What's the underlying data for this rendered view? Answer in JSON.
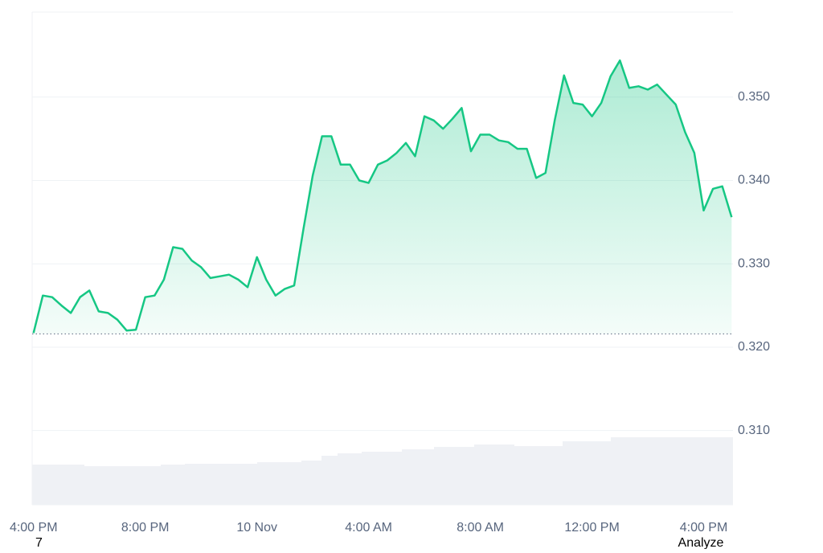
{
  "chart_data": {
    "type": "line",
    "x": [
      0,
      20,
      40,
      60,
      80,
      100,
      120,
      140,
      160,
      180,
      200,
      220,
      240,
      260,
      280,
      300,
      320,
      340,
      360,
      380,
      400,
      420,
      440,
      460,
      480,
      500,
      520,
      540,
      560,
      580,
      600,
      620,
      640,
      660,
      680,
      700,
      720,
      740,
      760,
      780,
      800,
      820,
      840,
      860,
      880,
      900,
      920,
      940,
      960,
      980,
      1000,
      1020,
      1040,
      1060,
      1080,
      1100,
      1120,
      1140,
      1160,
      1180,
      1200,
      1220,
      1240,
      1260,
      1280,
      1300,
      1320,
      1340,
      1360,
      1380,
      1400,
      1420,
      1440,
      1460,
      1480,
      1500
    ],
    "values": [
      0.3217,
      0.3262,
      0.326,
      0.325,
      0.3241,
      0.326,
      0.3268,
      0.3243,
      0.3241,
      0.3233,
      0.322,
      0.3221,
      0.326,
      0.3262,
      0.3281,
      0.332,
      0.3318,
      0.3304,
      0.3296,
      0.3283,
      0.3285,
      0.3287,
      0.3281,
      0.3272,
      0.3308,
      0.3281,
      0.3262,
      0.327,
      0.3274,
      0.3342,
      0.3406,
      0.3453,
      0.3453,
      0.3419,
      0.3419,
      0.34,
      0.3397,
      0.3419,
      0.3424,
      0.3433,
      0.3445,
      0.3429,
      0.3477,
      0.3472,
      0.3462,
      0.3474,
      0.3487,
      0.3435,
      0.3455,
      0.3455,
      0.3448,
      0.3446,
      0.3438,
      0.3438,
      0.3403,
      0.3409,
      0.3472,
      0.3526,
      0.3493,
      0.3491,
      0.3477,
      0.3493,
      0.3525,
      0.3544,
      0.3511,
      0.3513,
      0.3509,
      0.3515,
      0.3503,
      0.3491,
      0.3458,
      0.3433,
      0.3364,
      0.339,
      0.3393,
      0.3356
    ],
    "baseline": 0.3216,
    "up_color": "#16c784",
    "down_color": "#ea3943",
    "xlim": [
      -3,
      1503
    ],
    "xticks": [
      {
        "value": 0,
        "label": "4:00 PM"
      },
      {
        "value": 240,
        "label": "8:00 PM"
      },
      {
        "value": 480,
        "label": "10 Nov"
      },
      {
        "value": 720,
        "label": "4:00 AM"
      },
      {
        "value": 960,
        "label": "8:00 AM"
      },
      {
        "value": 1200,
        "label": "12:00 PM"
      },
      {
        "value": 1440,
        "label": "4:00 PM"
      }
    ],
    "ylim": [
      0.3011,
      0.3602
    ],
    "yticks": [
      {
        "value": 0.31,
        "label": "0.310"
      },
      {
        "value": 0.32,
        "label": "0.320"
      },
      {
        "value": 0.33,
        "label": "0.330"
      },
      {
        "value": 0.34,
        "label": "0.340"
      },
      {
        "value": 0.35,
        "label": "0.350"
      }
    ],
    "grid": true,
    "footer_left": "7",
    "footer_right": "Analyze"
  }
}
